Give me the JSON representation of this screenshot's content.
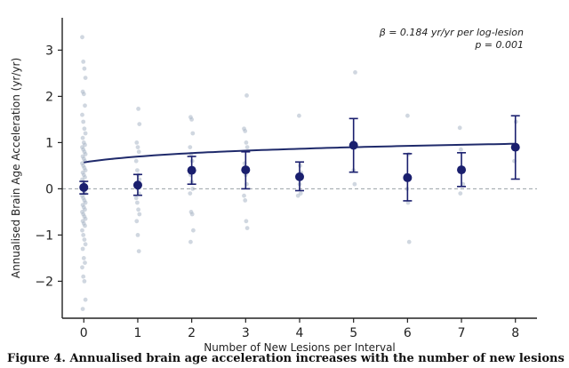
{
  "chart_data": {
    "type": "scatter",
    "xlabel": "Number of New Lesions per Interval",
    "ylabel": "Annualised Brain Age Acceleration (yr/yr)",
    "xlim": [
      -0.4,
      8.4
    ],
    "ylim": [
      -2.8,
      3.7
    ],
    "x_ticks": [
      "0",
      "1",
      "2",
      "3",
      "4",
      "5",
      "6",
      "7",
      "8"
    ],
    "y_ticks": [
      "−2",
      "−1",
      "0",
      "1",
      "2",
      "3"
    ],
    "annotation": {
      "line1": "β = 0.184 yr/yr per log-lesion",
      "line2": "p = 0.001",
      "placement": "top-right"
    },
    "reference_line_y": 0,
    "means": [
      {
        "x": 0,
        "y": 0.03,
        "lower": -0.11,
        "upper": 0.16
      },
      {
        "x": 1,
        "y": 0.08,
        "lower": -0.14,
        "upper": 0.31
      },
      {
        "x": 2,
        "y": 0.4,
        "lower": 0.1,
        "upper": 0.7
      },
      {
        "x": 3,
        "y": 0.41,
        "lower": 0.0,
        "upper": 0.8
      },
      {
        "x": 4,
        "y": 0.26,
        "lower": -0.04,
        "upper": 0.58
      },
      {
        "x": 5,
        "y": 0.94,
        "lower": 0.36,
        "upper": 1.52
      },
      {
        "x": 6,
        "y": 0.24,
        "lower": -0.26,
        "upper": 0.76
      },
      {
        "x": 7,
        "y": 0.41,
        "lower": 0.05,
        "upper": 0.78
      },
      {
        "x": 8,
        "y": 0.9,
        "lower": 0.21,
        "upper": 1.58
      }
    ],
    "fit": {
      "type": "log",
      "intercept": 0.57,
      "slope": 0.184,
      "color": "#1f2a6b"
    },
    "points": [
      {
        "x": 0,
        "ys": [
          3.28,
          2.75,
          2.6,
          2.4,
          2.1,
          2.05,
          1.8,
          1.6,
          1.45,
          1.3,
          1.2,
          1.1,
          1.0,
          0.95,
          0.9,
          0.85,
          0.8,
          0.75,
          0.7,
          0.65,
          0.6,
          0.55,
          0.5,
          0.45,
          0.4,
          0.35,
          0.3,
          0.25,
          0.2,
          0.15,
          0.1,
          0.05,
          0.0,
          -0.05,
          -0.1,
          -0.15,
          -0.2,
          -0.25,
          -0.3,
          -0.35,
          -0.4,
          -0.45,
          -0.5,
          -0.55,
          -0.6,
          -0.65,
          -0.7,
          -0.75,
          -0.8,
          -0.9,
          -1.0,
          -1.1,
          -1.2,
          -1.3,
          -1.5,
          -1.6,
          -1.7,
          -1.9,
          -2.0,
          -2.4,
          -2.6
        ]
      },
      {
        "x": 1,
        "ys": [
          1.73,
          1.4,
          1.0,
          0.9,
          0.8,
          0.6,
          0.4,
          0.3,
          0.2,
          0.1,
          0.0,
          -0.1,
          -0.2,
          -0.3,
          -0.45,
          -0.55,
          -0.7,
          -1.0,
          -1.35
        ]
      },
      {
        "x": 2,
        "ys": [
          1.55,
          1.5,
          1.2,
          0.9,
          0.75,
          0.6,
          0.45,
          0.3,
          0.15,
          0.0,
          -0.1,
          -0.5,
          -0.55,
          -0.9,
          -1.15
        ]
      },
      {
        "x": 3,
        "ys": [
          2.02,
          1.3,
          1.25,
          1.0,
          0.9,
          0.55,
          0.3,
          0.1,
          -0.15,
          -0.25,
          -0.7,
          -0.85
        ]
      },
      {
        "x": 4,
        "ys": [
          1.58,
          0.5,
          0.35,
          0.25,
          0.1,
          -0.1,
          -0.15
        ]
      },
      {
        "x": 5,
        "ys": [
          2.52,
          1.0,
          0.4,
          0.1
        ]
      },
      {
        "x": 6,
        "ys": [
          1.58,
          0.75,
          0.3,
          0.0,
          -0.3,
          -1.15
        ]
      },
      {
        "x": 7,
        "ys": [
          1.32,
          0.85,
          0.45,
          0.1,
          -0.1
        ]
      },
      {
        "x": 8,
        "ys": [
          1.45,
          0.9,
          0.6
        ]
      }
    ],
    "colors": {
      "mean": "#1a1f6e",
      "points": "#a9b7c6",
      "reference": "#9aa0a6",
      "axis": "#222222"
    },
    "grid": false
  },
  "caption": "Figure 4. Annualised brain age acceleration increases with the number of new lesions"
}
